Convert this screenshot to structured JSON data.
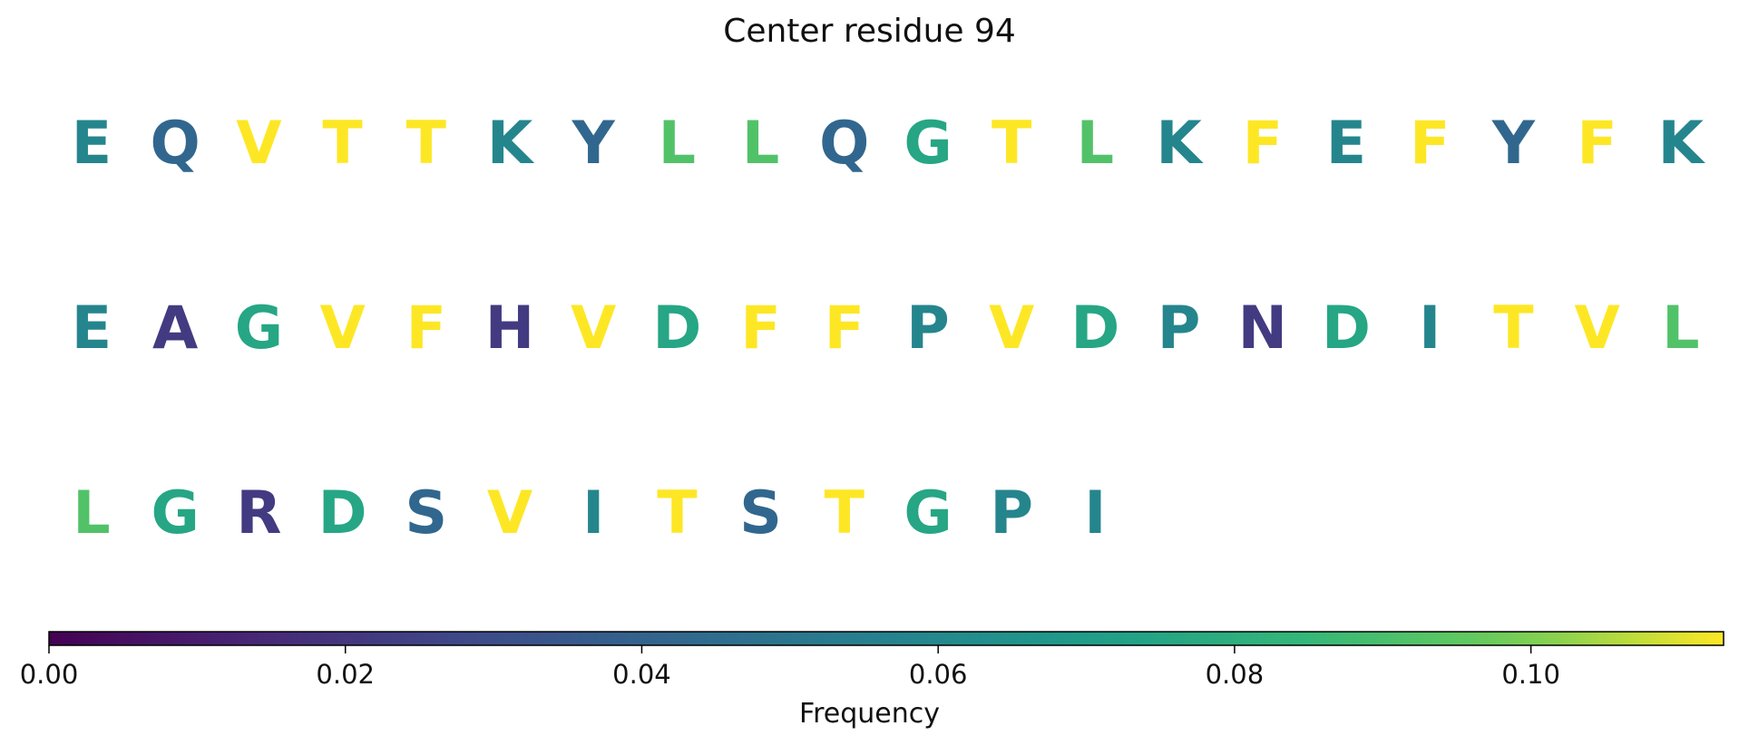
{
  "title": "Center residue 94",
  "chart_data": {
    "type": "heatmap",
    "title": "Center residue 94",
    "rows": [
      {
        "letters": [
          "E",
          "Q",
          "V",
          "T",
          "T",
          "K",
          "Y",
          "L",
          "L",
          "Q",
          "G",
          "T",
          "L",
          "K",
          "F",
          "E",
          "F",
          "Y",
          "F",
          "K"
        ],
        "values": [
          0.058,
          0.042,
          0.113,
          0.113,
          0.113,
          0.058,
          0.042,
          0.092,
          0.092,
          0.042,
          0.075,
          0.113,
          0.092,
          0.058,
          0.113,
          0.058,
          0.113,
          0.042,
          0.113,
          0.058
        ]
      },
      {
        "letters": [
          "E",
          "A",
          "G",
          "V",
          "F",
          "H",
          "V",
          "D",
          "F",
          "F",
          "P",
          "V",
          "D",
          "P",
          "N",
          "D",
          "I",
          "T",
          "V",
          "L"
        ],
        "values": [
          0.058,
          0.022,
          0.075,
          0.113,
          0.113,
          0.022,
          0.113,
          0.075,
          0.113,
          0.113,
          0.058,
          0.113,
          0.075,
          0.058,
          0.022,
          0.075,
          0.058,
          0.113,
          0.113,
          0.092
        ]
      },
      {
        "letters": [
          "L",
          "G",
          "R",
          "D",
          "S",
          "V",
          "I",
          "T",
          "S",
          "T",
          "G",
          "P",
          "I"
        ],
        "values": [
          0.092,
          0.075,
          0.022,
          0.075,
          0.042,
          0.113,
          0.058,
          0.113,
          0.042,
          0.113,
          0.075,
          0.058,
          0.058
        ]
      }
    ],
    "colorbar": {
      "label": "Frequency",
      "colormap": "viridis",
      "range": [
        0,
        0.113
      ],
      "ticks": [
        0.0,
        0.02,
        0.04,
        0.06,
        0.08,
        0.1
      ],
      "tick_labels": [
        "0.00",
        "0.02",
        "0.04",
        "0.06",
        "0.08",
        "0.10"
      ],
      "orientation": "horizontal"
    }
  }
}
